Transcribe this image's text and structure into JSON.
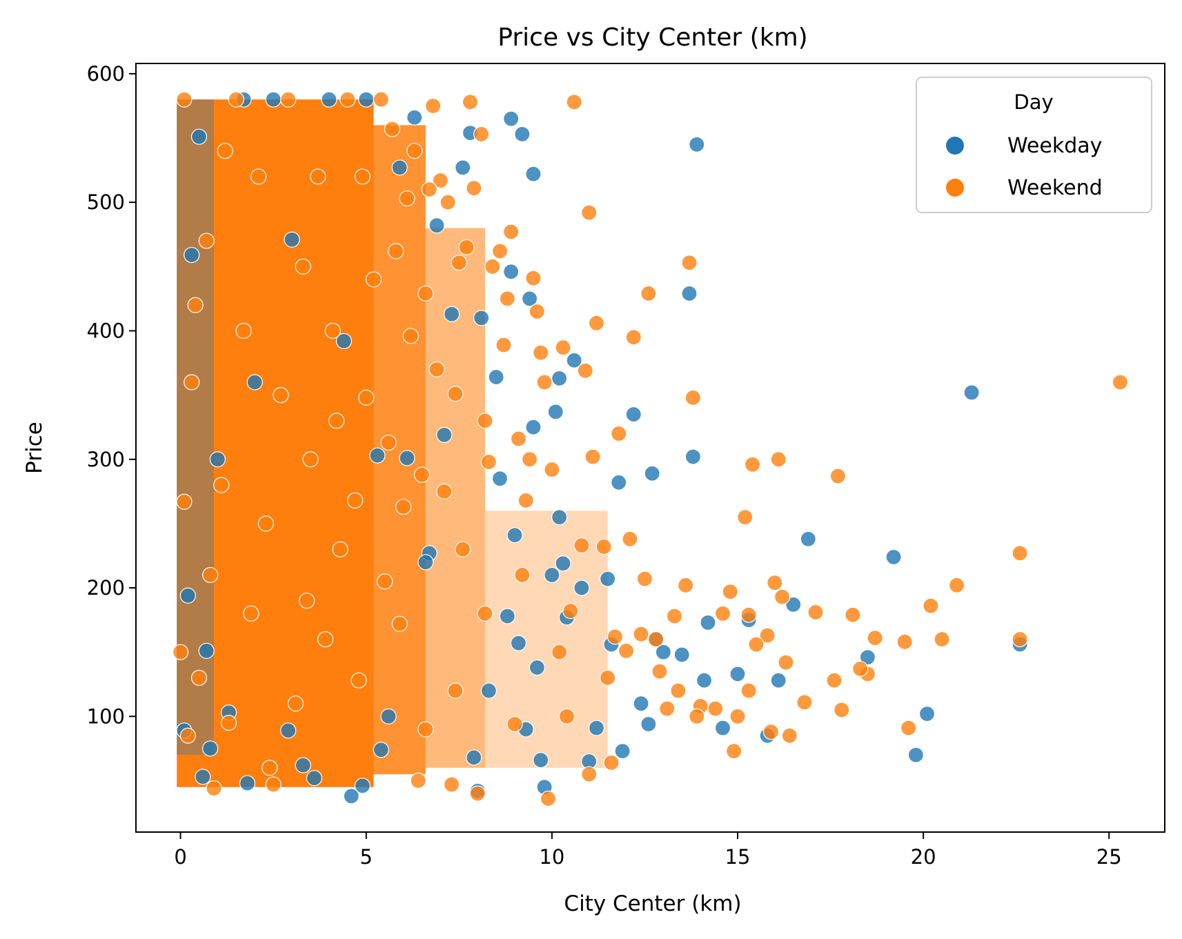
{
  "chart_data": {
    "type": "scatter",
    "title": "Price vs City Center (km)",
    "xlabel": "City Center (km)",
    "ylabel": "Price",
    "xlim": [
      -1.2,
      26.5
    ],
    "ylim": [
      10,
      608
    ],
    "xticks": [
      0,
      5,
      10,
      15,
      20,
      25
    ],
    "yticks": [
      100,
      200,
      300,
      400,
      500,
      600
    ],
    "grid": false,
    "legend": {
      "title": "Day",
      "placement": "top-right"
    },
    "dense_region_note_hidden": true,
    "series": [
      {
        "name": "Weekday",
        "color": "#1f77b4",
        "points": [
          [
            13.9,
            545
          ],
          [
            21.3,
            352
          ],
          [
            19.2,
            224
          ],
          [
            16.9,
            238
          ],
          [
            22.6,
            156
          ],
          [
            20.1,
            102
          ],
          [
            19.8,
            70
          ],
          [
            13.7,
            429
          ],
          [
            13.8,
            302
          ],
          [
            12.7,
            289
          ],
          [
            12.2,
            335
          ],
          [
            10.6,
            377
          ],
          [
            10.1,
            337
          ],
          [
            10.2,
            363
          ],
          [
            9.5,
            325
          ],
          [
            9.2,
            553
          ],
          [
            8.9,
            565
          ],
          [
            9.5,
            522
          ],
          [
            9.4,
            425
          ],
          [
            8.9,
            446
          ],
          [
            16.5,
            187
          ],
          [
            16.1,
            128
          ],
          [
            15.3,
            175
          ],
          [
            15.0,
            133
          ],
          [
            14.6,
            91
          ],
          [
            14.2,
            173
          ],
          [
            14.1,
            128
          ],
          [
            13.5,
            148
          ],
          [
            13.0,
            150
          ],
          [
            12.6,
            94
          ],
          [
            12.4,
            110
          ],
          [
            11.9,
            73
          ],
          [
            11.8,
            282
          ],
          [
            11.5,
            207
          ],
          [
            11.2,
            91
          ],
          [
            11.0,
            65
          ],
          [
            10.4,
            177
          ],
          [
            10.3,
            219
          ],
          [
            10.2,
            255
          ],
          [
            10.0,
            210
          ],
          [
            9.7,
            66
          ],
          [
            9.8,
            45
          ],
          [
            9.6,
            138
          ],
          [
            9.1,
            157
          ],
          [
            9.0,
            241
          ],
          [
            8.8,
            178
          ],
          [
            8.6,
            285
          ],
          [
            8.5,
            364
          ],
          [
            8.3,
            120
          ],
          [
            8.1,
            410
          ],
          [
            7.8,
            554
          ],
          [
            7.6,
            527
          ],
          [
            7.3,
            413
          ],
          [
            7.1,
            319
          ],
          [
            6.9,
            482
          ],
          [
            6.7,
            227
          ],
          [
            6.3,
            566
          ],
          [
            6.1,
            301
          ],
          [
            5.9,
            527
          ],
          [
            5.6,
            100
          ],
          [
            5.3,
            303
          ],
          [
            5.0,
            580
          ],
          [
            4.9,
            46
          ],
          [
            4.6,
            38
          ],
          [
            4.4,
            392
          ],
          [
            4.0,
            580
          ],
          [
            3.6,
            52
          ],
          [
            3.0,
            471
          ],
          [
            2.5,
            580
          ],
          [
            2.0,
            360
          ],
          [
            1.7,
            580
          ],
          [
            1.3,
            103
          ],
          [
            1.0,
            300
          ],
          [
            0.7,
            151
          ],
          [
            0.5,
            551
          ],
          [
            0.3,
            459
          ],
          [
            0.2,
            194
          ],
          [
            0.1,
            89
          ],
          [
            0.6,
            53
          ],
          [
            1.8,
            48
          ],
          [
            8.0,
            42
          ],
          [
            18.5,
            146
          ],
          [
            6.6,
            220
          ],
          [
            7.9,
            68
          ],
          [
            5.4,
            74
          ],
          [
            3.3,
            62
          ],
          [
            2.9,
            89
          ],
          [
            0.8,
            75
          ],
          [
            11.6,
            156
          ],
          [
            10.8,
            200
          ],
          [
            9.3,
            90
          ],
          [
            12.8,
            160
          ],
          [
            15.8,
            85
          ]
        ]
      },
      {
        "name": "Weekend",
        "color": "#ff7f0e",
        "points": [
          [
            25.3,
            360
          ],
          [
            22.6,
            227
          ],
          [
            22.6,
            160
          ],
          [
            20.9,
            202
          ],
          [
            20.5,
            160
          ],
          [
            20.2,
            186
          ],
          [
            19.5,
            158
          ],
          [
            19.6,
            91
          ],
          [
            18.7,
            161
          ],
          [
            18.5,
            133
          ],
          [
            18.3,
            137
          ],
          [
            18.1,
            179
          ],
          [
            17.8,
            105
          ],
          [
            17.6,
            128
          ],
          [
            17.7,
            287
          ],
          [
            17.1,
            181
          ],
          [
            16.8,
            111
          ],
          [
            16.4,
            85
          ],
          [
            16.3,
            142
          ],
          [
            16.2,
            193
          ],
          [
            16.0,
            204
          ],
          [
            16.1,
            300
          ],
          [
            15.9,
            88
          ],
          [
            15.8,
            163
          ],
          [
            15.5,
            156
          ],
          [
            15.4,
            296
          ],
          [
            15.3,
            179
          ],
          [
            15.3,
            120
          ],
          [
            15.2,
            255
          ],
          [
            15.0,
            100
          ],
          [
            14.9,
            73
          ],
          [
            14.8,
            197
          ],
          [
            14.6,
            180
          ],
          [
            14.4,
            106
          ],
          [
            14.0,
            108
          ],
          [
            13.9,
            100
          ],
          [
            13.8,
            348
          ],
          [
            13.7,
            453
          ],
          [
            13.6,
            202
          ],
          [
            13.4,
            120
          ],
          [
            13.3,
            178
          ],
          [
            13.1,
            106
          ],
          [
            12.9,
            135
          ],
          [
            12.8,
            160
          ],
          [
            12.6,
            429
          ],
          [
            12.5,
            207
          ],
          [
            12.4,
            164
          ],
          [
            12.2,
            395
          ],
          [
            12.1,
            238
          ],
          [
            12.0,
            151
          ],
          [
            11.8,
            320
          ],
          [
            11.7,
            162
          ],
          [
            11.6,
            64
          ],
          [
            11.4,
            232
          ],
          [
            11.2,
            406
          ],
          [
            11.1,
            302
          ],
          [
            11.0,
            492
          ],
          [
            10.9,
            369
          ],
          [
            10.8,
            233
          ],
          [
            10.6,
            578
          ],
          [
            10.5,
            182
          ],
          [
            10.3,
            387
          ],
          [
            10.2,
            150
          ],
          [
            10.0,
            292
          ],
          [
            9.9,
            36
          ],
          [
            9.8,
            360
          ],
          [
            9.7,
            383
          ],
          [
            9.6,
            415
          ],
          [
            9.5,
            441
          ],
          [
            9.4,
            300
          ],
          [
            9.3,
            268
          ],
          [
            9.1,
            316
          ],
          [
            9.0,
            94
          ],
          [
            8.9,
            477
          ],
          [
            8.8,
            425
          ],
          [
            8.7,
            389
          ],
          [
            8.6,
            462
          ],
          [
            8.4,
            450
          ],
          [
            8.3,
            298
          ],
          [
            8.2,
            330
          ],
          [
            8.1,
            553
          ],
          [
            8.0,
            40
          ],
          [
            7.9,
            511
          ],
          [
            7.8,
            578
          ],
          [
            7.7,
            465
          ],
          [
            7.6,
            230
          ],
          [
            7.5,
            453
          ],
          [
            7.4,
            351
          ],
          [
            7.3,
            47
          ],
          [
            7.2,
            500
          ],
          [
            7.1,
            275
          ],
          [
            7.0,
            517
          ],
          [
            6.9,
            370
          ],
          [
            6.8,
            575
          ],
          [
            6.7,
            510
          ],
          [
            6.6,
            429
          ],
          [
            6.5,
            288
          ],
          [
            6.4,
            50
          ],
          [
            6.3,
            540
          ],
          [
            6.2,
            396
          ],
          [
            6.1,
            503
          ],
          [
            6.0,
            263
          ],
          [
            5.9,
            172
          ],
          [
            5.8,
            462
          ],
          [
            5.7,
            557
          ],
          [
            5.6,
            313
          ],
          [
            5.5,
            205
          ],
          [
            5.4,
            580
          ],
          [
            5.2,
            440
          ],
          [
            5.0,
            348
          ],
          [
            4.9,
            520
          ],
          [
            4.8,
            128
          ],
          [
            4.7,
            268
          ],
          [
            4.5,
            580
          ],
          [
            4.3,
            230
          ],
          [
            4.1,
            400
          ],
          [
            3.9,
            160
          ],
          [
            3.7,
            520
          ],
          [
            3.5,
            300
          ],
          [
            3.3,
            450
          ],
          [
            3.1,
            110
          ],
          [
            2.9,
            580
          ],
          [
            2.7,
            350
          ],
          [
            2.5,
            47
          ],
          [
            2.3,
            250
          ],
          [
            2.1,
            520
          ],
          [
            1.9,
            180
          ],
          [
            1.7,
            400
          ],
          [
            1.5,
            580
          ],
          [
            1.3,
            95
          ],
          [
            1.1,
            280
          ],
          [
            0.9,
            44
          ],
          [
            0.7,
            470
          ],
          [
            0.5,
            130
          ],
          [
            0.3,
            360
          ],
          [
            0.2,
            85
          ],
          [
            0.1,
            580
          ],
          [
            0.1,
            267
          ],
          [
            0.0,
            150
          ],
          [
            0.4,
            420
          ],
          [
            0.8,
            210
          ],
          [
            1.2,
            540
          ],
          [
            2.4,
            60
          ],
          [
            3.4,
            190
          ],
          [
            4.2,
            330
          ],
          [
            6.6,
            90
          ],
          [
            7.4,
            120
          ],
          [
            8.2,
            180
          ],
          [
            9.2,
            210
          ],
          [
            10.4,
            100
          ],
          [
            11.0,
            55
          ],
          [
            11.5,
            130
          ]
        ]
      }
    ]
  }
}
